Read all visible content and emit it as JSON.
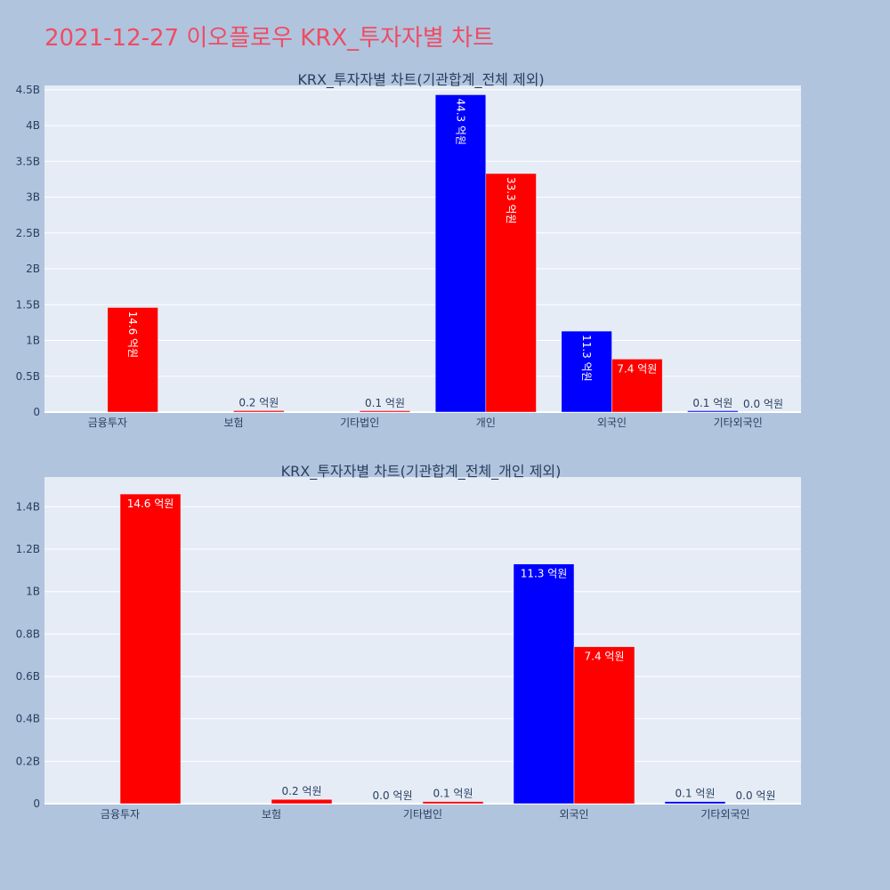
{
  "title": "2021-12-27 이오플로우 KRX_투자자별 차트",
  "colors": {
    "buy": "#0000ff",
    "sell": "#ff0000"
  },
  "chart_data": [
    {
      "type": "bar",
      "title": "KRX_투자자별 차트(기관합계_전체 제외)",
      "categories": [
        "금융투자",
        "보험",
        "기타법인",
        "개인",
        "외국인",
        "기타외국인"
      ],
      "series": [
        {
          "color": "#0000ff",
          "values": [
            0,
            0,
            0,
            4.43,
            1.13,
            0.01
          ],
          "labels": [
            "",
            "",
            "",
            "44.3 억원",
            "11.3 억원",
            "0.1 억원"
          ]
        },
        {
          "color": "#ff0000",
          "values": [
            1.46,
            0.02,
            0.01,
            3.33,
            0.74,
            0.0
          ],
          "labels": [
            "14.6 억원",
            "0.2 억원",
            "0.1 억원",
            "33.3 억원",
            "7.4 억원",
            "0.0 억원"
          ]
        }
      ],
      "ylim": [
        0,
        4.56
      ],
      "yticks": [
        0,
        0.5,
        1,
        1.5,
        2,
        2.5,
        3,
        3.5,
        4,
        4.5
      ],
      "ytick_labels": [
        "0",
        "0.5B",
        "1B",
        "1.5B",
        "2B",
        "2.5B",
        "3B",
        "3.5B",
        "4B",
        "4.5B"
      ],
      "rotated_inside_labels": true,
      "grid": true,
      "legend": "none"
    },
    {
      "type": "bar",
      "title": "KRX_투자자별 차트(기관합계_전체_개인 제외)",
      "categories": [
        "금융투자",
        "보험",
        "기타법인",
        "외국인",
        "기타외국인"
      ],
      "series": [
        {
          "color": "#0000ff",
          "values": [
            0,
            0,
            0.0,
            1.13,
            0.01
          ],
          "labels": [
            "",
            "",
            "0.0 억원",
            "11.3 억원",
            "0.1 억원"
          ]
        },
        {
          "color": "#ff0000",
          "values": [
            1.46,
            0.02,
            0.01,
            0.74,
            0.0
          ],
          "labels": [
            "14.6 억원",
            "0.2 억원",
            "0.1 억원",
            "7.4 억원",
            "0.0 억원"
          ]
        }
      ],
      "ylim": [
        0,
        1.54
      ],
      "yticks": [
        0,
        0.2,
        0.4,
        0.6,
        0.8,
        1,
        1.2,
        1.4
      ],
      "ytick_labels": [
        "0",
        "0.2B",
        "0.4B",
        "0.6B",
        "0.8B",
        "1B",
        "1.2B",
        "1.4B"
      ],
      "rotated_inside_labels": false,
      "grid": true,
      "legend": "none"
    }
  ]
}
